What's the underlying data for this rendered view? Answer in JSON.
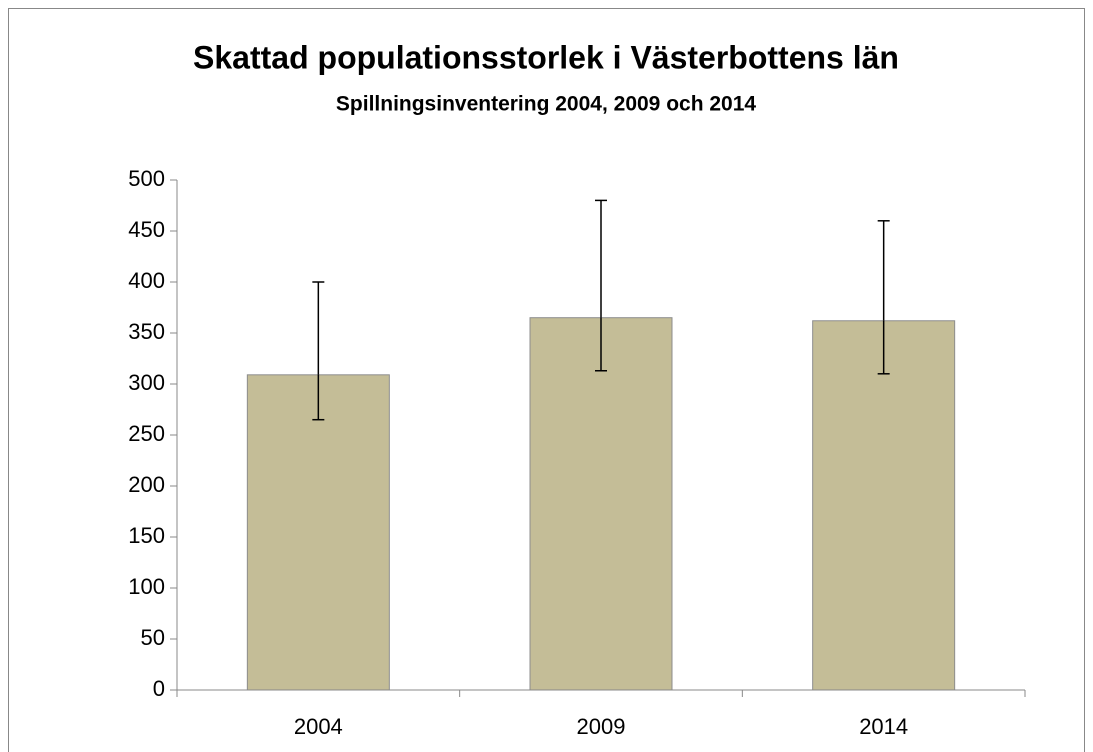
{
  "chart_data": {
    "type": "bar",
    "title": "Skattad populationsstorlek i Västerbottens län",
    "subtitle": "Spillningsinventering 2004, 2009 och 2014",
    "categories": [
      "2004",
      "2009",
      "2014"
    ],
    "values": [
      309,
      365,
      362
    ],
    "errors_minus": [
      44,
      52,
      52
    ],
    "errors_plus": [
      91,
      115,
      98
    ],
    "color": "#c4bd97",
    "ylim": [
      0,
      500
    ],
    "yticks": [
      0,
      50,
      100,
      150,
      200,
      250,
      300,
      350,
      400,
      450,
      500
    ],
    "grid": false
  }
}
